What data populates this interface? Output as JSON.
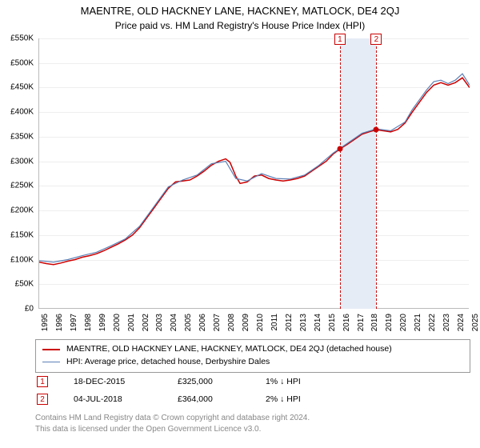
{
  "title": "MAENTRE, OLD HACKNEY LANE, HACKNEY, MATLOCK, DE4 2QJ",
  "subtitle": "Price paid vs. HM Land Registry's House Price Index (HPI)",
  "chart": {
    "type": "line",
    "x_start_year": 1995,
    "x_end_year": 2025,
    "ylim": [
      0,
      550000
    ],
    "ytick_step": 50000,
    "ytick_prefix": "£",
    "ytick_suffix": "K",
    "background_color": "#ffffff",
    "grid_color": "#eeeeee",
    "series": [
      {
        "name": "MAENTRE, OLD HACKNEY LANE, HACKNEY, MATLOCK, DE4 2QJ (detached house)",
        "color": "#cc0000",
        "line_width": 1.5,
        "data": [
          [
            1995.0,
            95000
          ],
          [
            1995.5,
            92000
          ],
          [
            1996.0,
            90000
          ],
          [
            1996.5,
            93000
          ],
          [
            1997.0,
            97000
          ],
          [
            1997.5,
            100000
          ],
          [
            1998.0,
            105000
          ],
          [
            1998.5,
            108000
          ],
          [
            1999.0,
            112000
          ],
          [
            1999.5,
            118000
          ],
          [
            2000.0,
            125000
          ],
          [
            2000.5,
            132000
          ],
          [
            2001.0,
            140000
          ],
          [
            2001.5,
            150000
          ],
          [
            2002.0,
            165000
          ],
          [
            2002.5,
            185000
          ],
          [
            2003.0,
            205000
          ],
          [
            2003.5,
            225000
          ],
          [
            2004.0,
            245000
          ],
          [
            2004.5,
            258000
          ],
          [
            2005.0,
            260000
          ],
          [
            2005.5,
            262000
          ],
          [
            2006.0,
            270000
          ],
          [
            2006.5,
            280000
          ],
          [
            2007.0,
            292000
          ],
          [
            2007.5,
            300000
          ],
          [
            2008.0,
            305000
          ],
          [
            2008.3,
            298000
          ],
          [
            2008.7,
            270000
          ],
          [
            2009.0,
            255000
          ],
          [
            2009.5,
            258000
          ],
          [
            2010.0,
            270000
          ],
          [
            2010.5,
            272000
          ],
          [
            2011.0,
            265000
          ],
          [
            2011.5,
            262000
          ],
          [
            2012.0,
            260000
          ],
          [
            2012.5,
            262000
          ],
          [
            2013.0,
            265000
          ],
          [
            2013.5,
            270000
          ],
          [
            2014.0,
            280000
          ],
          [
            2014.5,
            290000
          ],
          [
            2015.0,
            300000
          ],
          [
            2015.5,
            315000
          ],
          [
            2015.96,
            325000
          ],
          [
            2016.5,
            335000
          ],
          [
            2017.0,
            345000
          ],
          [
            2017.5,
            355000
          ],
          [
            2018.0,
            360000
          ],
          [
            2018.5,
            364000
          ],
          [
            2019.0,
            362000
          ],
          [
            2019.5,
            360000
          ],
          [
            2020.0,
            365000
          ],
          [
            2020.5,
            378000
          ],
          [
            2021.0,
            400000
          ],
          [
            2021.5,
            420000
          ],
          [
            2022.0,
            440000
          ],
          [
            2022.5,
            455000
          ],
          [
            2023.0,
            460000
          ],
          [
            2023.5,
            455000
          ],
          [
            2024.0,
            460000
          ],
          [
            2024.5,
            470000
          ],
          [
            2025.0,
            450000
          ]
        ]
      },
      {
        "name": "HPI: Average price, detached house, Derbyshire Dales",
        "color": "#5b7fb5",
        "line_width": 1.2,
        "data": [
          [
            1995.0,
            98000
          ],
          [
            1996.0,
            95000
          ],
          [
            1997.0,
            100000
          ],
          [
            1998.0,
            108000
          ],
          [
            1999.0,
            115000
          ],
          [
            2000.0,
            128000
          ],
          [
            2001.0,
            142000
          ],
          [
            2002.0,
            168000
          ],
          [
            2003.0,
            208000
          ],
          [
            2004.0,
            248000
          ],
          [
            2005.0,
            262000
          ],
          [
            2006.0,
            272000
          ],
          [
            2007.0,
            295000
          ],
          [
            2008.0,
            300000
          ],
          [
            2008.7,
            265000
          ],
          [
            2009.5,
            260000
          ],
          [
            2010.5,
            275000
          ],
          [
            2011.5,
            265000
          ],
          [
            2012.5,
            264000
          ],
          [
            2013.5,
            272000
          ],
          [
            2014.5,
            292000
          ],
          [
            2015.5,
            317000
          ],
          [
            2016.5,
            337000
          ],
          [
            2017.5,
            357000
          ],
          [
            2018.5,
            366000
          ],
          [
            2019.5,
            362000
          ],
          [
            2020.5,
            380000
          ],
          [
            2021.0,
            405000
          ],
          [
            2021.5,
            425000
          ],
          [
            2022.0,
            445000
          ],
          [
            2022.5,
            462000
          ],
          [
            2023.0,
            465000
          ],
          [
            2023.5,
            458000
          ],
          [
            2024.0,
            465000
          ],
          [
            2024.5,
            478000
          ],
          [
            2025.0,
            455000
          ]
        ]
      }
    ],
    "sale_band": {
      "start": 2015.96,
      "end": 2018.5,
      "color": "#e6ecf5"
    },
    "sales": [
      {
        "marker": "1",
        "year": 2015.96,
        "price": 325000
      },
      {
        "marker": "2",
        "year": 2018.5,
        "price": 364000
      }
    ]
  },
  "legend": {
    "items": [
      {
        "color": "#cc0000",
        "width": 2,
        "label": "MAENTRE, OLD HACKNEY LANE, HACKNEY, MATLOCK, DE4 2QJ (detached house)"
      },
      {
        "color": "#5b7fb5",
        "width": 1.2,
        "label": "HPI: Average price, detached house, Derbyshire Dales"
      }
    ]
  },
  "sale_table": [
    {
      "marker": "1",
      "date": "18-DEC-2015",
      "price": "£325,000",
      "change": "1% ↓ HPI"
    },
    {
      "marker": "2",
      "date": "04-JUL-2018",
      "price": "£364,000",
      "change": "2% ↓ HPI"
    }
  ],
  "footer": {
    "line1": "Contains HM Land Registry data © Crown copyright and database right 2024.",
    "line2": "This data is licensed under the Open Government Licence v3.0."
  }
}
